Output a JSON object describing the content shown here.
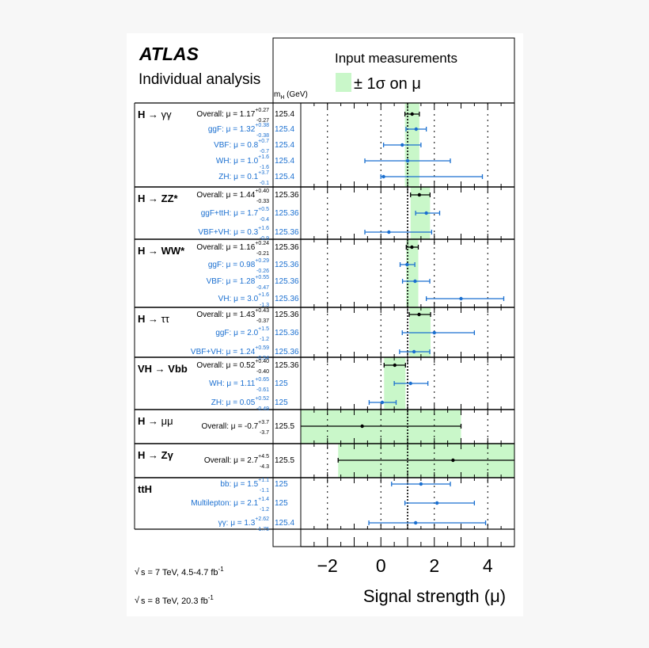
{
  "chart_data": {
    "type": "forest",
    "experiment": "ATLAS",
    "subtitle": "Individual analysis",
    "legend_title": "Input measurements",
    "legend_band": "± 1σ on μ",
    "mh_header": "m",
    "mh_header_sub": "H",
    "mh_header_unit": "(GeV)",
    "xlabel": "Signal strength (μ)",
    "xlim": [
      -3.0,
      5.0
    ],
    "xticks": [
      -2,
      0,
      2,
      4
    ],
    "xtick_labels": [
      "−2",
      "0",
      "2",
      "4"
    ],
    "sm_reference": 1.0,
    "energy_notes": [
      {
        "pre": "s = 7 TeV, 4.5-4.7 fb",
        "sup": "-1"
      },
      {
        "pre": "s = 8 TeV, 20.3 fb",
        "sup": "-1"
      }
    ],
    "colors": {
      "overall": "#000000",
      "sub": "#1a6fd0",
      "band": "#c9f7c9",
      "grid": "#000000"
    },
    "groups": [
      {
        "label_parts": [
          {
            "t": "H → ",
            "b": true
          },
          {
            "t": "γγ",
            "b": false
          }
        ],
        "band": [
          0.9,
          1.44
        ],
        "rows": [
          {
            "kind": "overall",
            "label": "Overall: μ = 1.17",
            "up": "+0.27",
            "dn": "-0.27",
            "mu": 1.17,
            "hi": 0.27,
            "lo": 0.27,
            "mh": "125.4"
          },
          {
            "kind": "sub",
            "label": "ggF: μ = 1.32",
            "up": "+0.38",
            "dn": "-0.38",
            "mu": 1.32,
            "hi": 0.38,
            "lo": 0.38,
            "mh": "125.4"
          },
          {
            "kind": "sub",
            "label": "VBF: μ = 0.8",
            "up": "+0.7",
            "dn": "-0.7",
            "mu": 0.8,
            "hi": 0.7,
            "lo": 0.7,
            "mh": "125.4"
          },
          {
            "kind": "sub",
            "label": "WH: μ = 1.0",
            "up": "+1.6",
            "dn": "-1.6",
            "mu": 1.0,
            "hi": 1.6,
            "lo": 1.6,
            "mh": "125.4"
          },
          {
            "kind": "sub",
            "label": "ZH: μ = 0.1",
            "up": "+3.7",
            "dn": "-0.1",
            "mu": 0.1,
            "hi": 3.7,
            "lo": 0.1,
            "mh": "125.4"
          }
        ]
      },
      {
        "label_parts": [
          {
            "t": "H → ",
            "b": true
          },
          {
            "t": "ZZ*",
            "b": true
          }
        ],
        "band": [
          1.11,
          1.84
        ],
        "rows": [
          {
            "kind": "overall",
            "label": "Overall: μ = 1.44",
            "up": "+0.40",
            "dn": "-0.33",
            "mu": 1.44,
            "hi": 0.4,
            "lo": 0.33,
            "mh": "125.36"
          },
          {
            "kind": "sub",
            "label": "ggF+ttH: μ = 1.7",
            "up": "+0.5",
            "dn": "-0.4",
            "mu": 1.7,
            "hi": 0.5,
            "lo": 0.4,
            "mh": "125.36"
          },
          {
            "kind": "sub",
            "label": "VBF+VH: μ = 0.3",
            "up": "+1.6",
            "dn": "-0.9",
            "mu": 0.3,
            "hi": 1.6,
            "lo": 0.9,
            "mh": "125.36"
          }
        ]
      },
      {
        "label_parts": [
          {
            "t": "H → ",
            "b": true
          },
          {
            "t": "WW*",
            "b": true
          }
        ],
        "band": [
          0.95,
          1.4
        ],
        "rows": [
          {
            "kind": "overall",
            "label": "Overall: μ = 1.16",
            "up": "+0.24",
            "dn": "-0.21",
            "mu": 1.16,
            "hi": 0.24,
            "lo": 0.21,
            "mh": "125.36"
          },
          {
            "kind": "sub",
            "label": "ggF: μ = 0.98",
            "up": "+0.29",
            "dn": "-0.26",
            "mu": 0.98,
            "hi": 0.29,
            "lo": 0.26,
            "mh": "125.36"
          },
          {
            "kind": "sub",
            "label": "VBF: μ = 1.28",
            "up": "+0.55",
            "dn": "-0.47",
            "mu": 1.28,
            "hi": 0.55,
            "lo": 0.47,
            "mh": "125.36"
          },
          {
            "kind": "sub",
            "label": "VH: μ = 3.0",
            "up": "+1.6",
            "dn": "-1.3",
            "mu": 3.0,
            "hi": 1.6,
            "lo": 1.3,
            "mh": "125.36"
          }
        ]
      },
      {
        "label_parts": [
          {
            "t": "H → ",
            "b": true
          },
          {
            "t": "ττ",
            "b": false
          }
        ],
        "band": [
          1.06,
          1.86
        ],
        "rows": [
          {
            "kind": "overall",
            "label": "Overall: μ = 1.43",
            "up": "+0.43",
            "dn": "-0.37",
            "mu": 1.43,
            "hi": 0.43,
            "lo": 0.37,
            "mh": "125.36"
          },
          {
            "kind": "sub",
            "label": "ggF: μ = 2.0",
            "up": "+1.5",
            "dn": "-1.2",
            "mu": 2.0,
            "hi": 1.5,
            "lo": 1.2,
            "mh": "125.36"
          },
          {
            "kind": "sub",
            "label": "VBF+VH: μ = 1.24",
            "up": "+0.59",
            "dn": "-0.54",
            "mu": 1.24,
            "hi": 0.59,
            "lo": 0.54,
            "mh": "125.36"
          }
        ]
      },
      {
        "label_parts": [
          {
            "t": "VH → Vbb",
            "b": true
          }
        ],
        "band": [
          0.12,
          0.92
        ],
        "rows": [
          {
            "kind": "overall",
            "label": "Overall: μ = 0.52",
            "up": "+0.40",
            "dn": "-0.40",
            "mu": 0.52,
            "hi": 0.4,
            "lo": 0.4,
            "mh": "125.36"
          },
          {
            "kind": "sub",
            "label": "WH: μ = 1.11",
            "up": "+0.65",
            "dn": "-0.61",
            "mu": 1.11,
            "hi": 0.65,
            "lo": 0.61,
            "mh": "125"
          },
          {
            "kind": "sub",
            "label": "ZH: μ = 0.05",
            "up": "+0.52",
            "dn": "-0.49",
            "mu": 0.05,
            "hi": 0.52,
            "lo": 0.49,
            "mh": "125"
          }
        ]
      },
      {
        "label_parts": [
          {
            "t": "H → ",
            "b": true
          },
          {
            "t": "μμ",
            "b": false
          }
        ],
        "band": [
          -4.4,
          3.0
        ],
        "rows": [
          {
            "kind": "overall",
            "label": "Overall: μ = -0.7",
            "up": "+3.7",
            "dn": "-3.7",
            "mu": -0.7,
            "hi": 3.7,
            "lo": 3.7,
            "mh": "125.5"
          }
        ]
      },
      {
        "label_parts": [
          {
            "t": "H → ",
            "b": true
          },
          {
            "t": "Zγ",
            "b": true
          }
        ],
        "band": [
          -1.6,
          7.2
        ],
        "rows": [
          {
            "kind": "overall",
            "label": "Overall: μ = 2.7",
            "up": "+4.5",
            "dn": "-4.3",
            "mu": 2.7,
            "hi": 4.5,
            "lo": 4.3,
            "mh": "125.5"
          }
        ]
      },
      {
        "label_parts": [
          {
            "t": "ttH",
            "b": true
          }
        ],
        "band": null,
        "rows": [
          {
            "kind": "sub",
            "label": "bb: μ = 1.5",
            "up": "+1.1",
            "dn": "-1.1",
            "mu": 1.5,
            "hi": 1.1,
            "lo": 1.1,
            "mh": "125"
          },
          {
            "kind": "sub",
            "label": "Multilepton: μ = 2.1",
            "up": "+1.4",
            "dn": "-1.2",
            "mu": 2.1,
            "hi": 1.4,
            "lo": 1.2,
            "mh": "125"
          },
          {
            "kind": "sub",
            "label": "γγ: μ = 1.3",
            "up": "+2.62",
            "dn": "-1.75",
            "mu": 1.3,
            "hi": 2.62,
            "lo": 1.75,
            "mh": "125.4"
          }
        ]
      }
    ]
  }
}
